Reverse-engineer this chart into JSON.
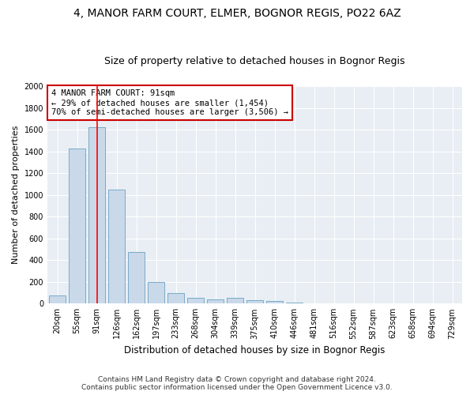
{
  "title1": "4, MANOR FARM COURT, ELMER, BOGNOR REGIS, PO22 6AZ",
  "title2": "Size of property relative to detached houses in Bognor Regis",
  "xlabel": "Distribution of detached houses by size in Bognor Regis",
  "ylabel": "Number of detached properties",
  "categories": [
    "20sqm",
    "55sqm",
    "91sqm",
    "126sqm",
    "162sqm",
    "197sqm",
    "233sqm",
    "268sqm",
    "304sqm",
    "339sqm",
    "375sqm",
    "410sqm",
    "446sqm",
    "481sqm",
    "516sqm",
    "552sqm",
    "587sqm",
    "623sqm",
    "658sqm",
    "694sqm",
    "729sqm"
  ],
  "values": [
    75,
    1425,
    1625,
    1050,
    475,
    200,
    100,
    50,
    35,
    55,
    30,
    25,
    10,
    5,
    3,
    2,
    1,
    1,
    0,
    0,
    0
  ],
  "bar_color": "#c9d9ea",
  "bar_edge_color": "#7aaac8",
  "red_line_index": 2,
  "ylim": [
    0,
    2000
  ],
  "yticks": [
    0,
    200,
    400,
    600,
    800,
    1000,
    1200,
    1400,
    1600,
    1800,
    2000
  ],
  "annotation_line1": "4 MANOR FARM COURT: 91sqm",
  "annotation_line2": "← 29% of detached houses are smaller (1,454)",
  "annotation_line3": "70% of semi-detached houses are larger (3,506) →",
  "annotation_box_color": "#ffffff",
  "annotation_box_edge": "#cc0000",
  "footer1": "Contains HM Land Registry data © Crown copyright and database right 2024.",
  "footer2": "Contains public sector information licensed under the Open Government Licence v3.0.",
  "bg_color": "#ffffff",
  "plot_bg_color": "#e8eef4",
  "grid_color": "#ffffff",
  "title1_fontsize": 10,
  "title2_fontsize": 9,
  "xlabel_fontsize": 8.5,
  "ylabel_fontsize": 8,
  "tick_fontsize": 7,
  "annotation_fontsize": 7.5,
  "footer_fontsize": 6.5
}
